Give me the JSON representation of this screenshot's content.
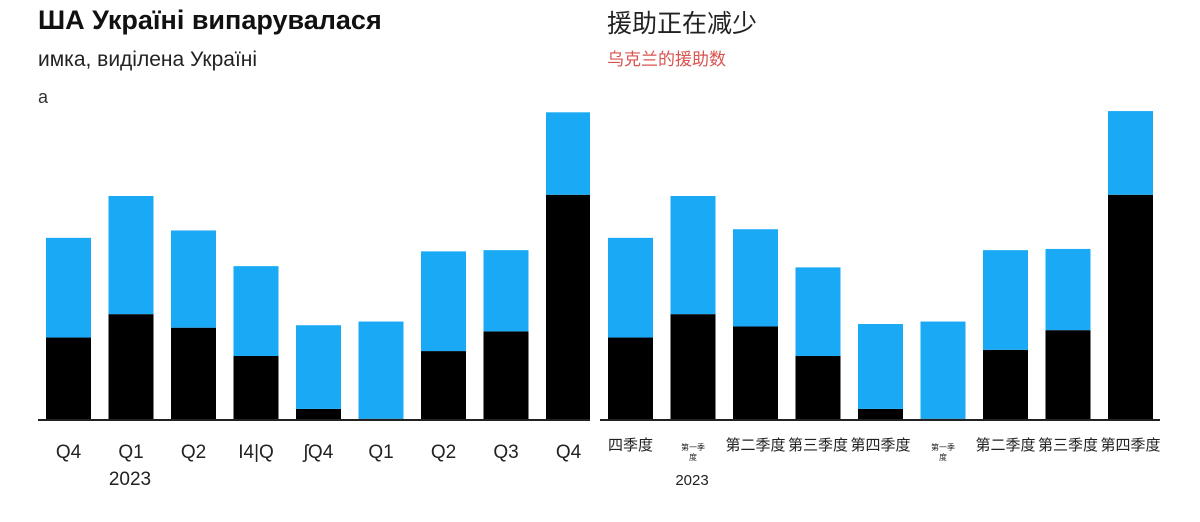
{
  "left": {
    "title": "ША Україні випарувалася",
    "subtitle": "имка, виділена Україні",
    "subtitle2": "а"
  },
  "right": {
    "title": "援助正在减少",
    "subtitle": "乌克兰的援助数"
  },
  "colors": {
    "black_segment": "#000000",
    "blue_segment": "#1aa9f5",
    "axis": "#222222"
  },
  "chart_data": [
    {
      "type": "bar",
      "stacked": true,
      "categories": [
        "Q4",
        "Q1",
        "Q2",
        "Q3",
        "Q4",
        "Q1",
        "Q2",
        "Q3",
        "Q4"
      ],
      "tick_labels": [
        "Q4",
        "Q1",
        "Q2",
        "Ι4|Q",
        "ʃQ4",
        "Q1",
        "Q2",
        "Q3",
        "Q4"
      ],
      "year_label": "2023",
      "series": [
        {
          "color": "#000000",
          "values": [
            67,
            86,
            75,
            52,
            9,
            1,
            56,
            72,
            183
          ]
        },
        {
          "color": "#1aa9f5",
          "values": [
            81,
            96,
            79,
            73,
            68,
            79,
            81,
            66,
            67
          ]
        }
      ],
      "ylim": [
        0,
        260
      ],
      "grid": false
    },
    {
      "type": "bar",
      "stacked": true,
      "categories": [
        "第四季度",
        "第一季度",
        "第二季度",
        "第三季度",
        "第四季度",
        "第一季度",
        "第二季度",
        "第三季度",
        "第四季度"
      ],
      "tick_labels": [
        "四季度",
        "第一季\n度",
        "第二季度",
        "第三季度",
        "第四季度",
        "第一季\n度",
        "第二季度",
        "第三季度",
        "第四季度"
      ],
      "year_label": "2023",
      "series": [
        {
          "color": "#000000",
          "values": [
            67,
            86,
            76,
            52,
            9,
            1,
            57,
            73,
            183
          ]
        },
        {
          "color": "#1aa9f5",
          "values": [
            81,
            96,
            79,
            72,
            69,
            79,
            81,
            66,
            68
          ]
        }
      ],
      "ylim": [
        0,
        260
      ],
      "grid": false
    }
  ]
}
